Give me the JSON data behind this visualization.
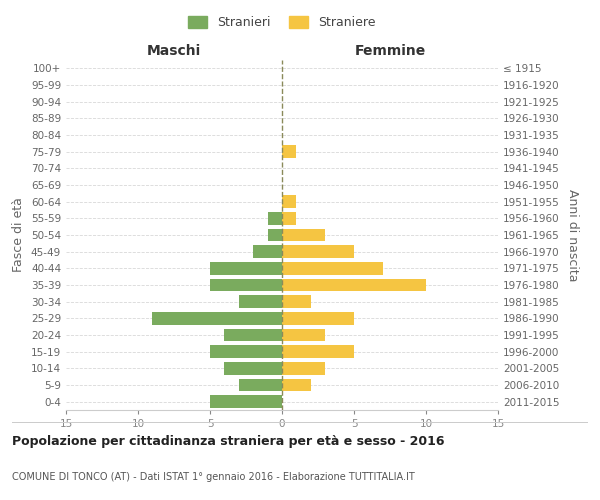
{
  "age_groups": [
    "0-4",
    "5-9",
    "10-14",
    "15-19",
    "20-24",
    "25-29",
    "30-34",
    "35-39",
    "40-44",
    "45-49",
    "50-54",
    "55-59",
    "60-64",
    "65-69",
    "70-74",
    "75-79",
    "80-84",
    "85-89",
    "90-94",
    "95-99",
    "100+"
  ],
  "birth_years": [
    "2011-2015",
    "2006-2010",
    "2001-2005",
    "1996-2000",
    "1991-1995",
    "1986-1990",
    "1981-1985",
    "1976-1980",
    "1971-1975",
    "1966-1970",
    "1961-1965",
    "1956-1960",
    "1951-1955",
    "1946-1950",
    "1941-1945",
    "1936-1940",
    "1931-1935",
    "1926-1930",
    "1921-1925",
    "1916-1920",
    "≤ 1915"
  ],
  "males": [
    5,
    3,
    4,
    5,
    4,
    9,
    3,
    5,
    5,
    2,
    1,
    1,
    0,
    0,
    0,
    0,
    0,
    0,
    0,
    0,
    0
  ],
  "females": [
    0,
    2,
    3,
    5,
    3,
    5,
    2,
    10,
    7,
    5,
    3,
    1,
    1,
    0,
    0,
    1,
    0,
    0,
    0,
    0,
    0
  ],
  "male_color": "#7aab5e",
  "female_color": "#f5c542",
  "background_color": "#ffffff",
  "grid_color": "#d8d8d8",
  "dashed_line_color": "#8a8a5a",
  "title": "Popolazione per cittadinanza straniera per età e sesso - 2016",
  "subtitle": "COMUNE DI TONCO (AT) - Dati ISTAT 1° gennaio 2016 - Elaborazione TUTTITALIA.IT",
  "xlabel_left": "Maschi",
  "xlabel_right": "Femmine",
  "ylabel_left": "Fasce di età",
  "ylabel_right": "Anni di nascita",
  "legend_male": "Stranieri",
  "legend_female": "Straniere",
  "xlim": 15,
  "tick_fontsize": 7.5,
  "label_fontsize": 9
}
